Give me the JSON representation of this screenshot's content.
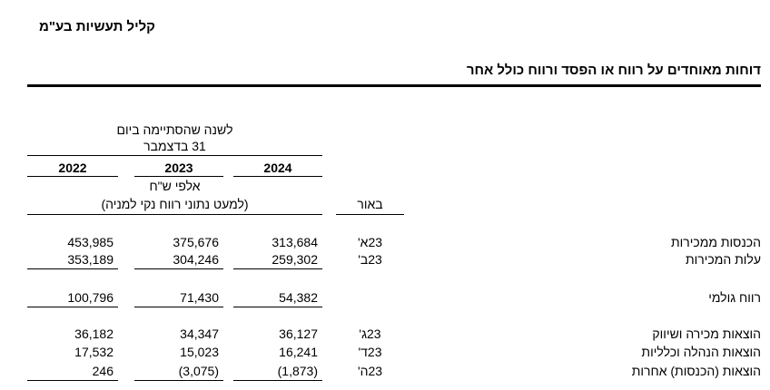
{
  "header": {
    "company": "קליל תעשיות בע\"מ",
    "title": "דוחות מאוחדים על רווח או הפסד ורווח כולל אחר"
  },
  "table": {
    "period_label": [
      "לשנה שהסתיימה ביום",
      "31 בדצמבר"
    ],
    "years": [
      "2024",
      "2023",
      "2022"
    ],
    "unit": "אלפי ש\"ח",
    "unit_note": "(למעט נתוני רווח נקי למניה)",
    "note_header": "באור",
    "rows": [
      {
        "label": "הכנסות ממכירות",
        "note": "23א'",
        "values": [
          "313,684",
          "375,676",
          "453,985"
        ]
      },
      {
        "label": "עלות המכירות",
        "note": "23ב'",
        "values": [
          "259,302",
          "304,246",
          "353,189"
        ]
      },
      {
        "label": "רווח גולמי",
        "note": null,
        "values": [
          "54,382",
          "71,430",
          "100,796"
        ]
      },
      {
        "label": "הוצאות מכירה ושיווק",
        "note": "23ג'",
        "values": [
          "36,127",
          "34,347",
          "36,182"
        ]
      },
      {
        "label": "הוצאות הנהלה וכלליות",
        "note": "23ד'",
        "values": [
          "16,241",
          "15,023",
          "17,532"
        ]
      },
      {
        "label": "הוצאות (הכנסות) אחרות",
        "note": "23ה'",
        "values": [
          "(1,873)",
          "(3,075)",
          "246"
        ]
      }
    ]
  }
}
